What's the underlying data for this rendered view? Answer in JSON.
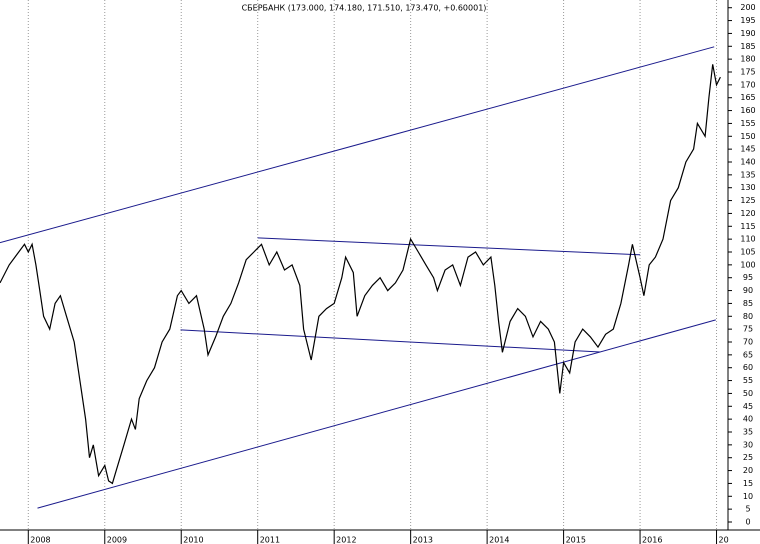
{
  "chart_data": {
    "type": "line",
    "title": "СБЕРБАНК (173.000, 174.180, 171.510, 173.470, +0.60001)",
    "xlim": [
      2007.63,
      2017.15
    ],
    "ylim": [
      0,
      203
    ],
    "xticks": [
      2008,
      2009,
      2010,
      2011,
      2012,
      2013,
      2014,
      2015,
      2016,
      {
        "value": 2017,
        "label": "20"
      }
    ],
    "yticks": [
      0,
      5,
      10,
      15,
      20,
      25,
      30,
      35,
      40,
      45,
      50,
      55,
      60,
      65,
      70,
      75,
      80,
      85,
      90,
      95,
      100,
      105,
      110,
      115,
      120,
      125,
      130,
      135,
      140,
      145,
      150,
      155,
      160,
      165,
      170,
      175,
      180,
      185,
      190,
      195,
      200
    ],
    "grid": true,
    "series": [
      {
        "color": "#000000",
        "x": [
          2007.63,
          2007.75,
          2007.85,
          2007.95,
          2008.0,
          2008.05,
          2008.1,
          2008.15,
          2008.2,
          2008.28,
          2008.35,
          2008.42,
          2008.5,
          2008.6,
          2008.7,
          2008.75,
          2008.8,
          2008.85,
          2008.92,
          2009.0,
          2009.05,
          2009.1,
          2009.15,
          2009.25,
          2009.35,
          2009.4,
          2009.45,
          2009.55,
          2009.65,
          2009.75,
          2009.85,
          2009.95,
          2010.0,
          2010.1,
          2010.2,
          2010.3,
          2010.35,
          2010.45,
          2010.55,
          2010.65,
          2010.75,
          2010.85,
          2010.95,
          2011.05,
          2011.15,
          2011.25,
          2011.35,
          2011.45,
          2011.55,
          2011.6,
          2011.7,
          2011.8,
          2011.9,
          2012.0,
          2012.1,
          2012.15,
          2012.25,
          2012.3,
          2012.4,
          2012.5,
          2012.6,
          2012.7,
          2012.8,
          2012.9,
          2013.0,
          2013.1,
          2013.2,
          2013.3,
          2013.35,
          2013.45,
          2013.55,
          2013.65,
          2013.75,
          2013.85,
          2013.95,
          2014.05,
          2014.1,
          2014.15,
          2014.2,
          2014.3,
          2014.4,
          2014.5,
          2014.6,
          2014.7,
          2014.8,
          2014.88,
          2014.95,
          2015.0,
          2015.08,
          2015.15,
          2015.25,
          2015.35,
          2015.45,
          2015.55,
          2015.65,
          2015.75,
          2015.85,
          2015.9,
          2016.0,
          2016.05,
          2016.12,
          2016.2,
          2016.3,
          2016.4,
          2016.5,
          2016.6,
          2016.7,
          2016.75,
          2016.85,
          2016.9,
          2016.95,
          2017.0,
          2017.05
        ],
        "values": [
          93,
          100,
          104,
          108,
          105,
          108,
          100,
          90,
          80,
          75,
          85,
          88,
          80,
          70,
          50,
          40,
          25,
          30,
          18,
          22,
          16,
          15,
          20,
          30,
          40,
          36,
          48,
          55,
          60,
          70,
          75,
          88,
          90,
          85,
          88,
          75,
          65,
          72,
          80,
          85,
          93,
          102,
          105,
          108,
          100,
          105,
          98,
          100,
          92,
          75,
          63,
          80,
          83,
          85,
          95,
          103,
          97,
          80,
          88,
          92,
          95,
          90,
          93,
          98,
          110,
          105,
          100,
          95,
          90,
          98,
          100,
          92,
          103,
          105,
          100,
          103,
          92,
          78,
          66,
          78,
          83,
          80,
          72,
          78,
          75,
          70,
          50,
          62,
          58,
          70,
          75,
          72,
          68,
          73,
          75,
          85,
          100,
          108,
          95,
          88,
          100,
          103,
          110,
          125,
          130,
          140,
          145,
          155,
          150,
          165,
          178,
          170,
          173
        ]
      }
    ],
    "trendlines": [
      {
        "color": "#1a1a8c",
        "x": [
          2007.63,
          2016.97
        ],
        "y": [
          108.6,
          184.8
        ]
      },
      {
        "color": "#1a1a8c",
        "x": [
          2008.12,
          2016.99
        ],
        "y": [
          5.4,
          78.6
        ]
      },
      {
        "color": "#1a1a8c",
        "x": [
          2011.0,
          2016.0
        ],
        "y": [
          110.5,
          103.9
        ]
      },
      {
        "color": "#1a1a8c",
        "x": [
          2009.99,
          2015.48
        ],
        "y": [
          74.7,
          66.1
        ]
      }
    ]
  }
}
